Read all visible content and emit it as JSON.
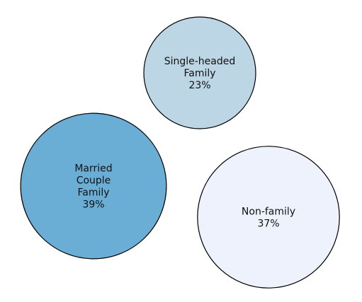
{
  "chart_data": {
    "type": "bubble",
    "title": "",
    "series": [
      {
        "label_lines": [
          "Single-headed",
          "Family"
        ],
        "value": 23,
        "value_label": "23%",
        "color": "#bcd6e6"
      },
      {
        "label_lines": [
          "Married",
          "Couple",
          "Family"
        ],
        "value": 39,
        "value_label": "39%",
        "color": "#6aaed6"
      },
      {
        "label_lines": [
          "Non-family"
        ],
        "value": 37,
        "value_label": "37%",
        "color": "#eef2fc"
      }
    ]
  }
}
